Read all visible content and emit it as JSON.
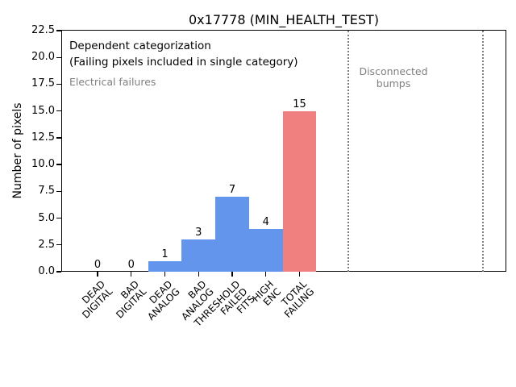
{
  "chart_data": {
    "type": "bar",
    "title": "0x17778 (MIN_HEALTH_TEST)",
    "xlabel": "",
    "ylabel": "Number of pixels",
    "categories": [
      "DEAD\nDIGITAL",
      "BAD\nDIGITAL",
      "DEAD\nANALOG",
      "BAD\nANALOG",
      "THRESHOLD\nFAILED\nFITS",
      "HIGH\nENC",
      "TOTAL\nFAILING"
    ],
    "values": [
      0,
      0,
      1,
      3,
      7,
      4,
      15
    ],
    "bar_labels": [
      "0",
      "0",
      "1",
      "3",
      "7",
      "4",
      "15"
    ],
    "bar_colors": [
      "#6495ED",
      "#6495ED",
      "#6495ED",
      "#6495ED",
      "#6495ED",
      "#6495ED",
      "#F08080"
    ],
    "ylim": [
      0,
      22.5
    ],
    "ytick_labels": [
      "0.0",
      "2.5",
      "5.0",
      "7.5",
      "10.0",
      "12.5",
      "15.0",
      "17.5",
      "20.0",
      "22.5"
    ],
    "grid": false,
    "legend": null,
    "annotations": [
      {
        "text": "Dependent categorization",
        "color": "#000000"
      },
      {
        "text": "(Failing pixels included in single category)",
        "color": "#000000"
      },
      {
        "text": "Electrical failures",
        "color": "#7f7f7f"
      },
      {
        "text": "Disconnected\nbumps",
        "color": "#7f7f7f"
      }
    ],
    "dividers": {
      "style": "dotted",
      "color": "#7f7f7f",
      "x_axis_positions": [
        7.46,
        11.45
      ]
    }
  }
}
